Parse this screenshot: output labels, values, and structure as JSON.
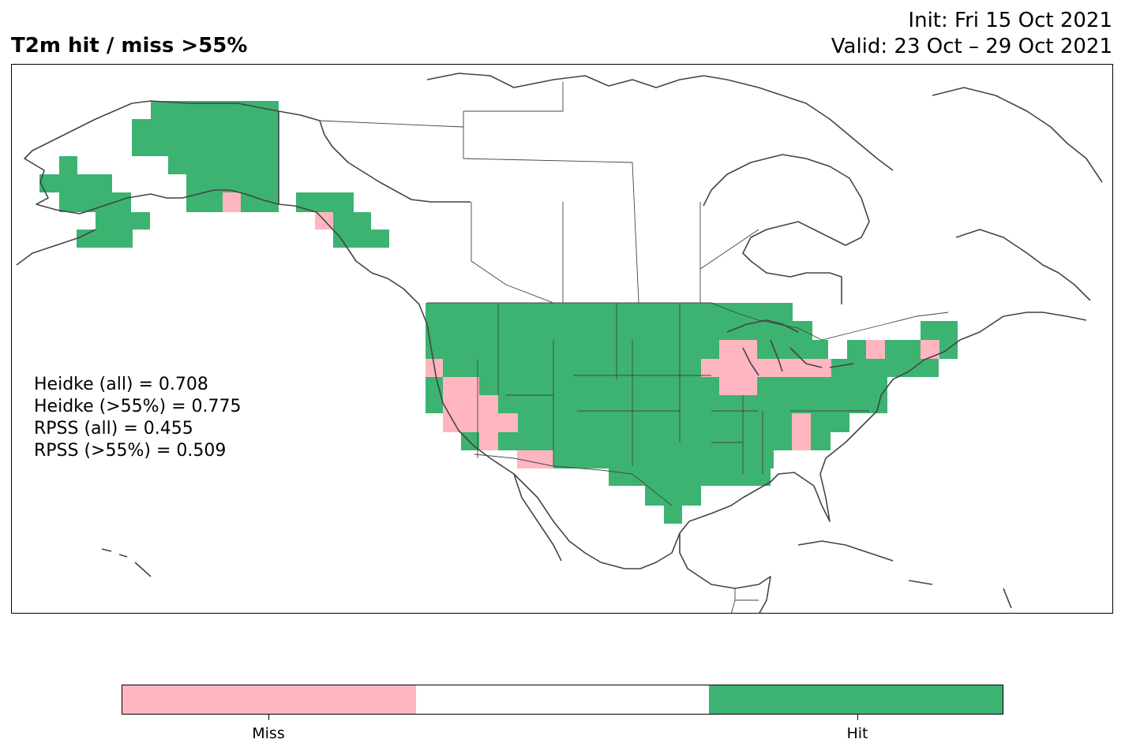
{
  "title": "T2m hit / miss  >55%",
  "init_line": "Init: Fri 15 Oct 2021",
  "valid_line": "Valid: 23 Oct – 29 Oct 2021",
  "stats": [
    "Heidke (all) = 0.708",
    "Heidke (>55%) = 0.775",
    "RPSS (all) = 0.455",
    "RPSS (>55%) = 0.509"
  ],
  "colors": {
    "miss": "#ffb6c1",
    "neutral": "#ffffff",
    "hit": "#3cb371",
    "coast": "#444444"
  },
  "legend": {
    "miss_label": "Miss",
    "hit_label": "Hit"
  }
}
